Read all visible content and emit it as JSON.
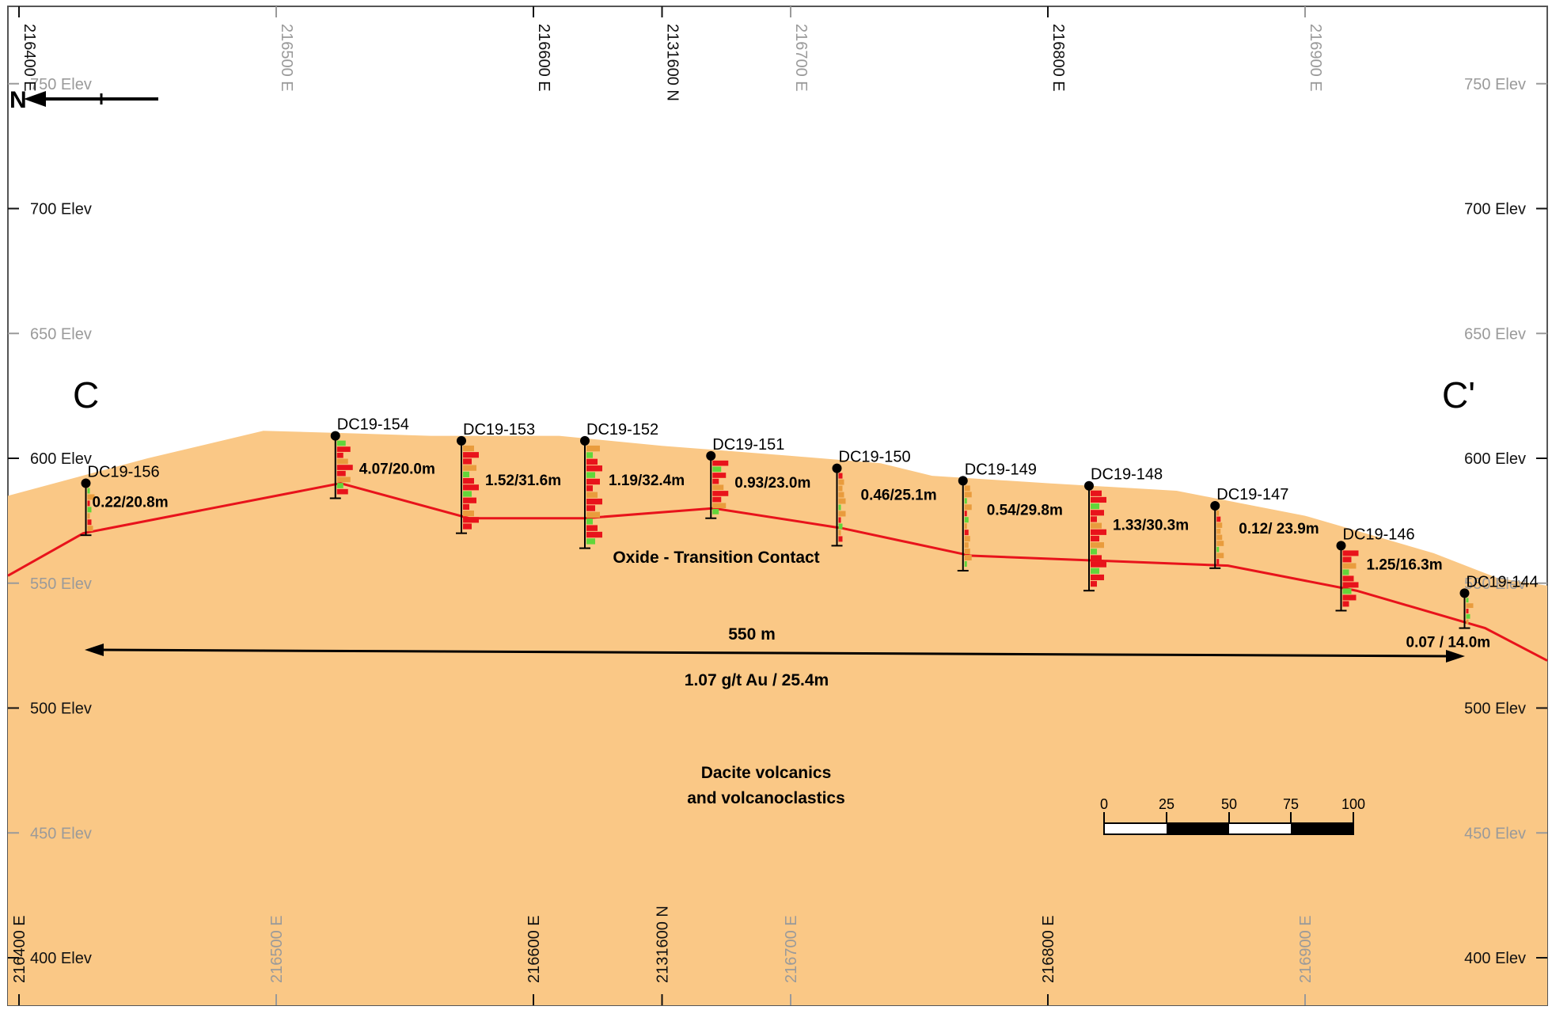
{
  "section_labels": {
    "start": "C",
    "end": "C'"
  },
  "north_arrow": {
    "label": "N"
  },
  "elevation_ticks": [
    {
      "value": 750,
      "label": "750 Elev",
      "style": "light"
    },
    {
      "value": 700,
      "label": "700 Elev",
      "style": "dark"
    },
    {
      "value": 650,
      "label": "650 Elev",
      "style": "light"
    },
    {
      "value": 600,
      "label": "600 Elev",
      "style": "dark"
    },
    {
      "value": 550,
      "label": "550 Elev",
      "style": "light"
    },
    {
      "value": 500,
      "label": "500 Elev",
      "style": "dark"
    },
    {
      "value": 450,
      "label": "450 Elev",
      "style": "light"
    },
    {
      "value": 400,
      "label": "400 Elev",
      "style": "dark"
    }
  ],
  "easting_ticks": [
    {
      "value": 216400,
      "label": "216400 E",
      "style": "dark"
    },
    {
      "value": 216500,
      "label": "216500 E",
      "style": "light"
    },
    {
      "value": 216600,
      "label": "216600 E",
      "style": "dark"
    },
    {
      "value": 216650,
      "label": "2131600 N",
      "style": "dark"
    },
    {
      "value": 216700,
      "label": "216700 E",
      "style": "light"
    },
    {
      "value": 216800,
      "label": "216800 E",
      "style": "dark"
    },
    {
      "value": 216900,
      "label": "216900 E",
      "style": "light"
    }
  ],
  "topography": [
    [
      216370,
      578
    ],
    [
      216390,
      585
    ],
    [
      216450,
      600
    ],
    [
      216495,
      611
    ],
    [
      216530,
      610
    ],
    [
      216560,
      609
    ],
    [
      216610,
      609
    ],
    [
      216650,
      605
    ],
    [
      216700,
      601
    ],
    [
      216735,
      598
    ],
    [
      216755,
      593
    ],
    [
      216800,
      590
    ],
    [
      216850,
      587
    ],
    [
      216900,
      577
    ],
    [
      216950,
      562
    ],
    [
      216975,
      552
    ],
    [
      216995,
      549
    ],
    [
      217010,
      545
    ]
  ],
  "oxide_contact": [
    [
      216370,
      553
    ],
    [
      216425,
      570
    ],
    [
      216525,
      590
    ],
    [
      216575,
      576
    ],
    [
      216620,
      576
    ],
    [
      216670,
      580
    ],
    [
      216720,
      572
    ],
    [
      216770,
      561
    ],
    [
      216820,
      559
    ],
    [
      216870,
      557
    ],
    [
      216920,
      547
    ],
    [
      216970,
      532
    ],
    [
      217010,
      519
    ]
  ],
  "drillholes": [
    {
      "name": "DC19-156",
      "easting": 216426,
      "collar": 590,
      "depth": 20.8,
      "result": "0.22/20.8m"
    },
    {
      "name": "DC19-154",
      "easting": 216523,
      "collar": 609,
      "depth": 25,
      "result": "4.07/20.0m"
    },
    {
      "name": "DC19-153",
      "easting": 216572,
      "collar": 607,
      "depth": 37,
      "result": "1.52/31.6m"
    },
    {
      "name": "DC19-152",
      "easting": 216620,
      "collar": 607,
      "depth": 43,
      "result": "1.19/32.4m"
    },
    {
      "name": "DC19-151",
      "easting": 216669,
      "collar": 601,
      "depth": 25,
      "result": "0.93/23.0m"
    },
    {
      "name": "DC19-150",
      "easting": 216718,
      "collar": 596,
      "depth": 31,
      "result": "0.46/25.1m"
    },
    {
      "name": "DC19-149",
      "easting": 216767,
      "collar": 591,
      "depth": 36,
      "result": "0.54/29.8m"
    },
    {
      "name": "DC19-148",
      "easting": 216816,
      "collar": 589,
      "depth": 42,
      "result": "1.33/30.3m"
    },
    {
      "name": "DC19-147",
      "easting": 216865,
      "collar": 581,
      "depth": 25,
      "result": "0.12/ 23.9m"
    },
    {
      "name": "DC19-146",
      "easting": 216914,
      "collar": 565,
      "depth": 26,
      "result": "1.25/16.3m"
    },
    {
      "name": "DC19-144",
      "easting": 216962,
      "collar": 546,
      "depth": 14,
      "result": "0.07 / 14.0m"
    }
  ],
  "annotations": {
    "contact": "Oxide - Transition Contact",
    "distance": "550 m",
    "average": "1.07 g/t Au / 25.4m",
    "lithology_line1": "Dacite volcanics",
    "lithology_line2": "and volcanoclastics"
  },
  "scale_bar": {
    "ticks": [
      "0",
      "25",
      "50",
      "75",
      "100"
    ]
  },
  "colors": {
    "rock": "#fac886",
    "contact": "#e8131b",
    "assay_high": "#e8131b",
    "assay_mid": "#e99c3d",
    "assay_low": "#62d63a",
    "collar": "#000000"
  }
}
